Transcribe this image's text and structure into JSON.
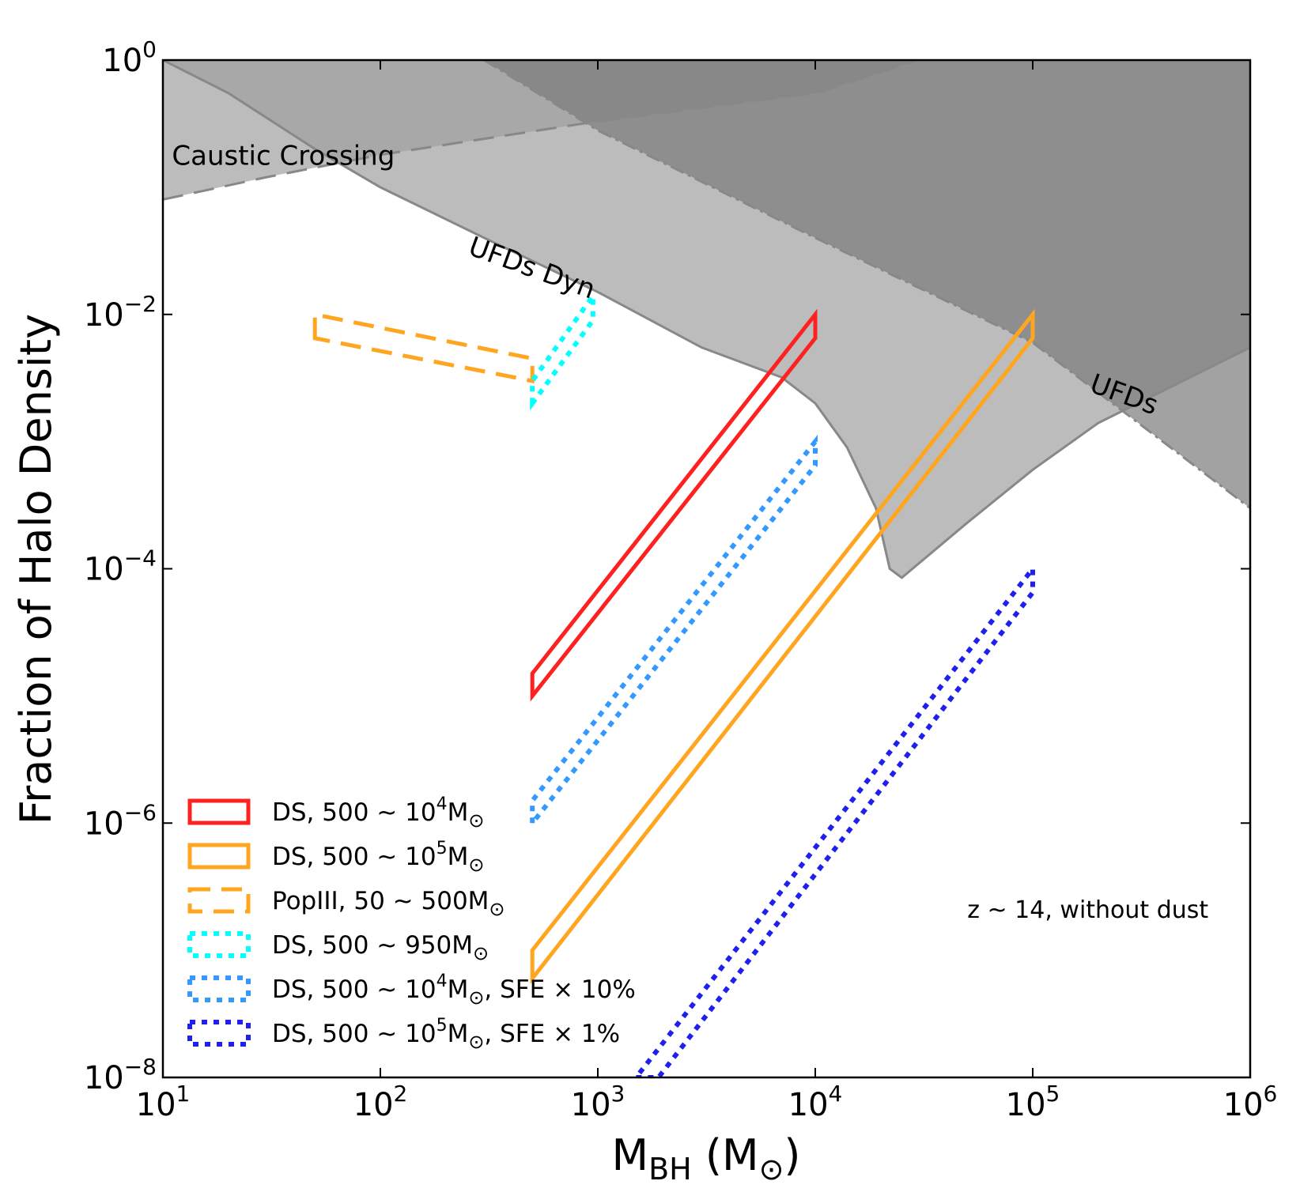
{
  "chart_data": {
    "type": "area",
    "title": "",
    "xlabel": "M_BH (M_⊙)",
    "xlabel_parts": {
      "main": "M",
      "sub": "BH",
      "unit": "(M",
      "unit_sym": "⊙",
      "unit_close": ")"
    },
    "ylabel": "Fraction of Halo Density",
    "xscale": "log",
    "yscale": "log",
    "xlim": [
      10,
      1000000
    ],
    "ylim": [
      1e-08,
      1
    ],
    "xticks": [
      {
        "base": "10",
        "exp": "1",
        "value": 10
      },
      {
        "base": "10",
        "exp": "2",
        "value": 100
      },
      {
        "base": "10",
        "exp": "3",
        "value": 1000
      },
      {
        "base": "10",
        "exp": "4",
        "value": 10000
      },
      {
        "base": "10",
        "exp": "5",
        "value": 100000
      },
      {
        "base": "10",
        "exp": "6",
        "value": 1000000
      }
    ],
    "yticks": [
      {
        "base": "10",
        "exp": "0",
        "value": 1
      },
      {
        "base": "10",
        "exp": "−2",
        "value": 0.01
      },
      {
        "base": "10",
        "exp": "−4",
        "value": 0.0001
      },
      {
        "base": "10",
        "exp": "−6",
        "value": 1e-06
      },
      {
        "base": "10",
        "exp": "−8",
        "value": 1e-08
      }
    ],
    "grid": false,
    "legend_position": "bottom-left",
    "exclusion_regions": [
      {
        "name": "Caustic Crossing",
        "color": "#a0a0a0",
        "opacity": 0.7,
        "line_style": "dashed",
        "boundary": [
          [
            10,
            0.08
          ],
          [
            30,
            0.12
          ],
          [
            100,
            0.18
          ],
          [
            1000,
            0.33
          ],
          [
            10000,
            0.55
          ],
          [
            30000,
            1
          ]
        ]
      },
      {
        "name": "UFDs Dyn",
        "color": "#a0a0a0",
        "opacity": 0.7,
        "line_style": "solid",
        "boundary": [
          [
            10,
            1
          ],
          [
            20,
            0.55
          ],
          [
            50,
            0.2
          ],
          [
            100,
            0.1
          ],
          [
            300,
            0.04
          ],
          [
            1000,
            0.015
          ],
          [
            3000,
            0.0055
          ],
          [
            7000,
            0.0032
          ],
          [
            10000,
            0.002
          ],
          [
            14000,
            0.0009
          ],
          [
            19000,
            0.0003
          ],
          [
            22000,
            0.0001
          ],
          [
            25000,
            8.5e-05
          ],
          [
            50000,
            0.00023
          ],
          [
            100000,
            0.0006
          ],
          [
            200000,
            0.0014
          ],
          [
            1000000,
            0.0055
          ]
        ]
      },
      {
        "name": "UFDs",
        "color": "#7a7a7a",
        "opacity": 0.7,
        "line_style": "dashdot",
        "boundary": [
          [
            300,
            1
          ],
          [
            1000,
            0.28
          ],
          [
            10000,
            0.04
          ],
          [
            100000,
            0.006
          ],
          [
            1000000,
            0.0003
          ]
        ]
      }
    ],
    "series": [
      {
        "name": "DS, 500 ~ 10⁴M⊙",
        "label_main": "DS, 500 ~ 10",
        "label_exp": "4",
        "label_tail": "M",
        "label_tail2": "",
        "color": "#ff2020",
        "style": "solid",
        "polygon": [
          [
            500,
            1e-05
          ],
          [
            500,
            1.5e-05
          ],
          [
            10000,
            0.01
          ],
          [
            10000,
            0.0065
          ]
        ]
      },
      {
        "name": "DS, 500 ~ 10⁵M⊙",
        "label_main": "DS, 500 ~ 10",
        "label_exp": "5",
        "label_tail": "M",
        "label_tail2": "",
        "color": "#ffa520",
        "style": "solid",
        "polygon": [
          [
            500,
            6e-08
          ],
          [
            500,
            1e-07
          ],
          [
            100000,
            0.01
          ],
          [
            100000,
            0.0065
          ]
        ]
      },
      {
        "name": "PopIII, 50 ~ 500M⊙",
        "label_main": "PopIII, 50 ~ 500M",
        "label_exp": "",
        "label_tail": "",
        "label_tail2": "",
        "color": "#ffa520",
        "style": "dashed",
        "polygon": [
          [
            50,
            0.0065
          ],
          [
            50,
            0.01
          ],
          [
            500,
            0.0045
          ],
          [
            500,
            0.003
          ]
        ]
      },
      {
        "name": "DS, 500 ~ 950M⊙",
        "label_main": "DS, 500 ~ 950M",
        "label_exp": "",
        "label_tail": "",
        "label_tail2": "",
        "color": "#00ffff",
        "style": "dotted",
        "polygon": [
          [
            500,
            0.002
          ],
          [
            500,
            0.003
          ],
          [
            950,
            0.014
          ],
          [
            950,
            0.009
          ]
        ]
      },
      {
        "name": "DS, 500 ~ 10⁴M⊙, SFE × 10%",
        "label_main": "DS, 500 ~ 10",
        "label_exp": "4",
        "label_tail": "M",
        "label_tail2": ", SFE × 10%",
        "color": "#3399ff",
        "style": "dotted",
        "polygon": [
          [
            500,
            1e-06
          ],
          [
            500,
            1.5e-06
          ],
          [
            10000,
            0.001
          ],
          [
            10000,
            0.00065
          ]
        ]
      },
      {
        "name": "DS, 500 ~ 10⁵M⊙, SFE × 1%",
        "label_main": "DS, 500 ~ 10",
        "label_exp": "5",
        "label_tail": "M",
        "label_tail2": ", SFE × 1%",
        "color": "#2020ee",
        "style": "dotted",
        "polygon": [
          [
            1500,
            1e-08
          ],
          [
            1900,
            1e-08
          ],
          [
            100000,
            6.5e-05
          ],
          [
            100000,
            0.0001
          ]
        ]
      }
    ],
    "annotations": [
      {
        "text": "Caustic Crossing",
        "x": 11,
        "y": 0.15,
        "rotation": 0
      },
      {
        "text": "UFDs Dyn",
        "x": 250,
        "y": 0.03,
        "rotation": 20
      },
      {
        "text": "UFDs",
        "x": 180000,
        "y": 0.0025,
        "rotation": 20
      },
      {
        "text": "z ~ 14, without dust",
        "x": 50000,
        "y": 1.8e-07,
        "rotation": 0
      }
    ]
  }
}
